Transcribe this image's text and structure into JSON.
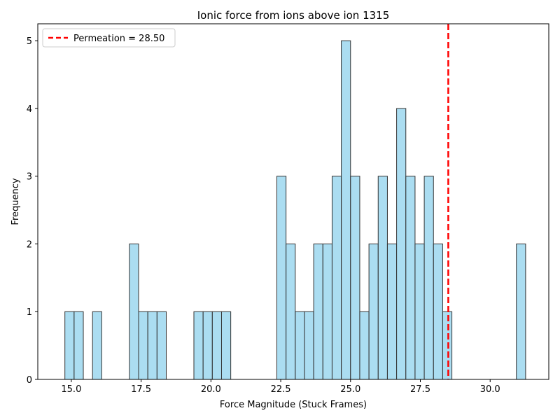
{
  "chart_data": {
    "type": "bar",
    "title": "Ionic force from ions above ion 1315",
    "xlabel": "Force Magnitude (Stuck Frames)",
    "ylabel": "Frequency",
    "xlim": [
      13.8,
      32.1
    ],
    "ylim": [
      0,
      5.25
    ],
    "xticks": [
      15.0,
      17.5,
      20.0,
      22.5,
      25.0,
      27.5,
      30.0
    ],
    "xtick_labels": [
      "15.0",
      "17.5",
      "20.0",
      "22.5",
      "25.0",
      "27.5",
      "30.0"
    ],
    "yticks": [
      0,
      1,
      2,
      3,
      4,
      5
    ],
    "ytick_labels": [
      "0",
      "1",
      "2",
      "3",
      "4",
      "5"
    ],
    "bin_width": 0.33,
    "bins": [
      {
        "x0": 14.77,
        "count": 1
      },
      {
        "x0": 15.1,
        "count": 1
      },
      {
        "x0": 15.76,
        "count": 1
      },
      {
        "x0": 17.08,
        "count": 2
      },
      {
        "x0": 17.41,
        "count": 1
      },
      {
        "x0": 17.74,
        "count": 1
      },
      {
        "x0": 18.07,
        "count": 1
      },
      {
        "x0": 19.39,
        "count": 1
      },
      {
        "x0": 19.72,
        "count": 1
      },
      {
        "x0": 20.05,
        "count": 1
      },
      {
        "x0": 20.38,
        "count": 1
      },
      {
        "x0": 22.36,
        "count": 3
      },
      {
        "x0": 22.69,
        "count": 2
      },
      {
        "x0": 23.02,
        "count": 1
      },
      {
        "x0": 23.35,
        "count": 1
      },
      {
        "x0": 23.68,
        "count": 2
      },
      {
        "x0": 24.01,
        "count": 2
      },
      {
        "x0": 24.34,
        "count": 3
      },
      {
        "x0": 24.67,
        "count": 5
      },
      {
        "x0": 25.0,
        "count": 3
      },
      {
        "x0": 25.33,
        "count": 1
      },
      {
        "x0": 25.66,
        "count": 2
      },
      {
        "x0": 25.99,
        "count": 3
      },
      {
        "x0": 26.32,
        "count": 2
      },
      {
        "x0": 26.65,
        "count": 4
      },
      {
        "x0": 26.98,
        "count": 3
      },
      {
        "x0": 27.31,
        "count": 2
      },
      {
        "x0": 27.64,
        "count": 3
      },
      {
        "x0": 27.97,
        "count": 2
      },
      {
        "x0": 28.3,
        "count": 1
      },
      {
        "x0": 30.94,
        "count": 2
      }
    ],
    "bar_color": "#87ceeb",
    "bar_edge_color": "#333333",
    "vline": {
      "x": 28.5,
      "color": "#ff0000",
      "style": "dashed",
      "label": "Permeation = 28.50"
    },
    "legend": {
      "placement": "top-left",
      "entries": [
        "Permeation = 28.50"
      ]
    },
    "grid": false
  }
}
